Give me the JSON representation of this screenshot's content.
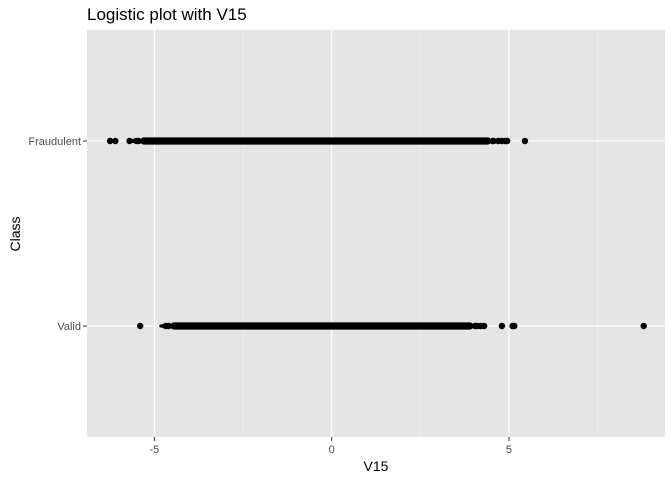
{
  "chart_data": {
    "type": "scatter",
    "title": "Logistic plot with V15",
    "xlabel": "V15",
    "ylabel": "Class",
    "categories": [
      "Valid",
      "Fraudulent"
    ],
    "x_ticks": [
      -5,
      0,
      5
    ],
    "xlim": [
      -6.9,
      9.4
    ],
    "grid": true,
    "series": [
      {
        "category": "Fraudulent",
        "band": [
          -5.4,
          4.5
        ],
        "points": [
          -6.25,
          -6.1,
          -5.7,
          -5.5,
          -5.3,
          -5.15,
          -5.0,
          4.55,
          4.7,
          4.8,
          4.9,
          4.95,
          5.45
        ]
      },
      {
        "category": "Valid",
        "band": [
          -4.55,
          4.0
        ],
        "points": [
          -5.4,
          -4.68,
          -4.6,
          4.1,
          4.2,
          4.3,
          4.8,
          5.1,
          5.15,
          8.8
        ]
      }
    ]
  },
  "colors": {
    "panel": "#e5e5e5",
    "grid_major": "#ffffff",
    "grid_minor": "#f2f2f2",
    "point": "#000000",
    "tick_text": "#4d4d4d"
  }
}
